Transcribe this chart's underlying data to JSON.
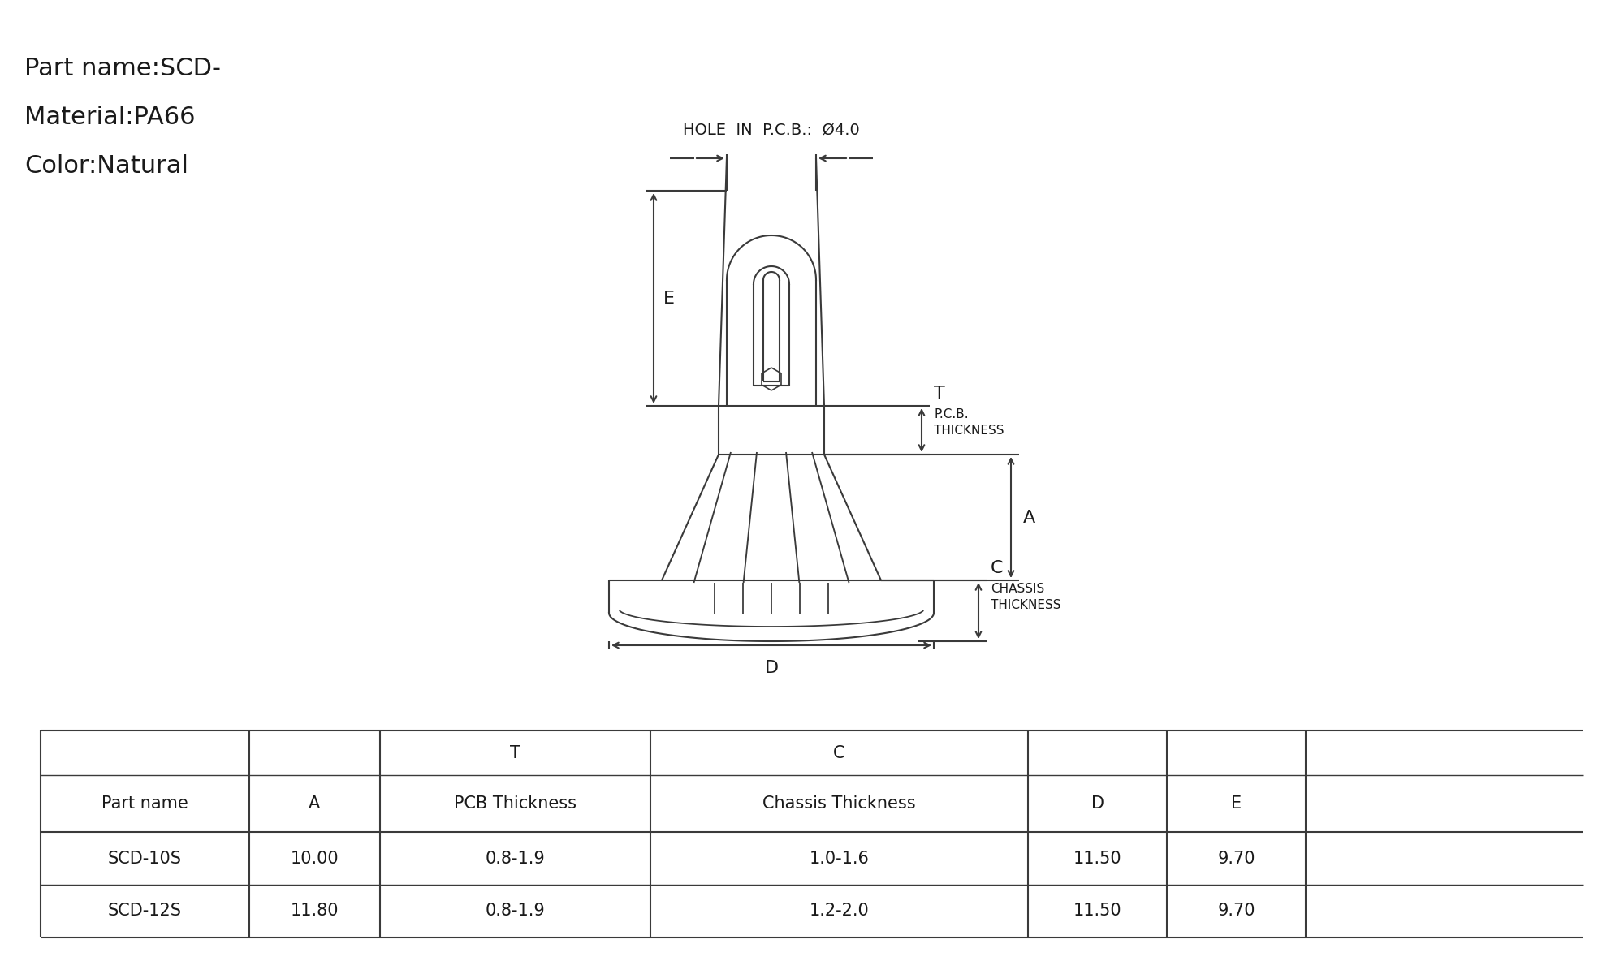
{
  "hole_label": "HOLE  IN  P.C.B.:  Ø4.0",
  "part_name_line1": "Part name:SCD-",
  "part_name_line2": "Material:PA66",
  "part_name_line3": "Color:Natural",
  "bg_color": "#ffffff",
  "line_color": "#3a3a3a",
  "text_color": "#1a1a1a",
  "font_size_info": 22,
  "font_size_dim": 16,
  "font_size_label": 14,
  "font_size_table_hdr": 15,
  "font_size_table_data": 15,
  "table_data": [
    [
      "SCD-10S",
      "10.00",
      "0.8-1.9",
      "1.0-1.6",
      "11.50",
      "9.70"
    ],
    [
      "SCD-12S",
      "11.80",
      "0.8-1.9",
      "1.2-2.0",
      "11.50",
      "9.70"
    ]
  ]
}
